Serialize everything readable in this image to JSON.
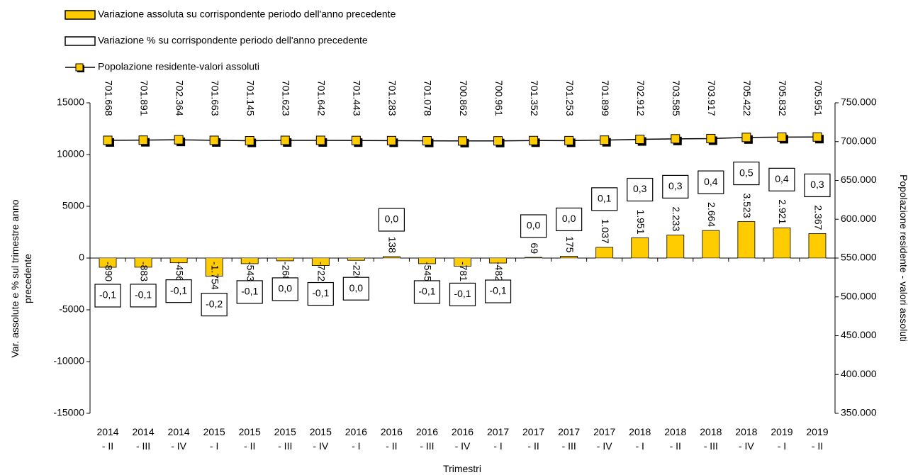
{
  "chart_data": {
    "type": "bar",
    "categories": [
      "2014 - II",
      "2014 - III",
      "2014 - IV",
      "2015 - I",
      "2015 - II",
      "2015 - III",
      "2015 - IV",
      "2016 - I",
      "2016 - II",
      "2016 - III",
      "2016 - IV",
      "2017 - I",
      "2017 - II",
      "2017 - III",
      "2017 - IV",
      "2018 - I",
      "2018 - II",
      "2018 - III",
      "2018 - IV",
      "2019 - I",
      "2019 - II"
    ],
    "series": [
      {
        "name": "Variazione assoluta su corrispondente periodo dell'anno precedente",
        "type": "bar",
        "color": "#ffcc00",
        "values": [
          -890,
          -883,
          -456,
          -1754,
          -543,
          -268,
          -722,
          -220,
          138,
          -545,
          -781,
          -482,
          69,
          175,
          1037,
          1951,
          2233,
          2664,
          3523,
          2921,
          2367
        ],
        "value_labels": [
          "-890",
          "-883",
          "-456",
          "-1.754",
          "-543",
          "-268",
          "-722",
          "-220",
          "138",
          "-545",
          "-781",
          "-482",
          "69",
          "175",
          "1.037",
          "1.951",
          "2.233",
          "2.664",
          "3.523",
          "2.921",
          "2.367"
        ]
      },
      {
        "name": "Variazione % su corrispondente periodo dell'anno precedente",
        "type": "bar",
        "color": "#ffffff",
        "values": [
          -0.1,
          -0.1,
          -0.1,
          -0.2,
          -0.1,
          0.0,
          -0.1,
          0.0,
          0.0,
          -0.1,
          -0.1,
          -0.1,
          0.0,
          0.0,
          0.1,
          0.3,
          0.3,
          0.4,
          0.5,
          0.4,
          0.3
        ],
        "value_labels": [
          "-0,1",
          "-0,1",
          "-0,1",
          "-0,2",
          "-0,1",
          "0,0",
          "-0,1",
          "0,0",
          "0,0",
          "-0,1",
          "-0,1",
          "-0,1",
          "0,0",
          "0,0",
          "0,1",
          "0,3",
          "0,3",
          "0,4",
          "0,5",
          "0,4",
          "0,3"
        ]
      },
      {
        "name": "Popolazione residente-valori assoluti",
        "type": "line",
        "axis": "y2",
        "color": "#ffcc00",
        "values": [
          701668,
          701891,
          702364,
          701663,
          701145,
          701623,
          701642,
          701443,
          701283,
          701078,
          700862,
          700961,
          701352,
          701253,
          701899,
          702912,
          703585,
          703917,
          705422,
          705832,
          705951
        ],
        "value_labels": [
          "701.668",
          "701.891",
          "702.364",
          "701.663",
          "701.145",
          "701.623",
          "701.642",
          "701.443",
          "701.283",
          "701.078",
          "700.862",
          "700.961",
          "701.352",
          "701.253",
          "701.899",
          "702.912",
          "703.585",
          "703.917",
          "705.422",
          "705.832",
          "705.951"
        ]
      }
    ],
    "x_label": "Trimestri",
    "y_label": "Var. assolute e % sul trimestre anno precedente",
    "y2_label": "Popolazione residente - valori assoluti",
    "ylim": [
      -15000,
      15000
    ],
    "yticks": [
      -15000,
      -10000,
      -5000,
      0,
      5000,
      10000,
      15000
    ],
    "y2lim": [
      350000,
      750000
    ],
    "y2ticks": [
      {
        "value": 350000,
        "label": "350.000"
      },
      {
        "value": 400000,
        "label": "400.000"
      },
      {
        "value": 450000,
        "label": "450.000"
      },
      {
        "value": 500000,
        "label": "500.000"
      },
      {
        "value": 550000,
        "label": "550.000"
      },
      {
        "value": 600000,
        "label": "600.000"
      },
      {
        "value": 650000,
        "label": "650.000"
      },
      {
        "value": 700000,
        "label": "700.000"
      },
      {
        "value": 750000,
        "label": "750.000"
      }
    ],
    "grid": false,
    "legend": "top-left"
  }
}
